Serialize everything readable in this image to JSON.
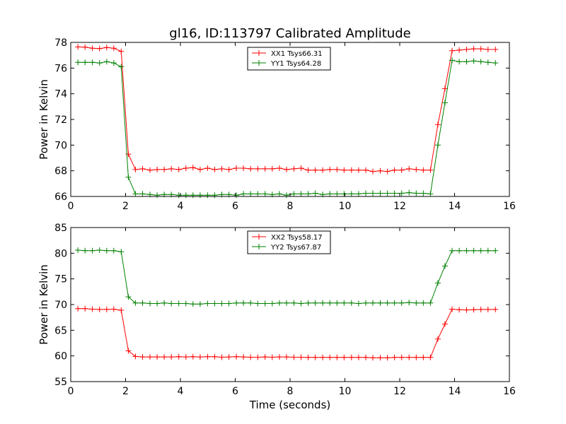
{
  "figure": {
    "title": "gl16, ID:113797 Calibrated Amplitude",
    "xlabel": "Time (seconds)"
  },
  "chart_data": [
    {
      "type": "line",
      "title": "gl16, ID:113797 Calibrated Amplitude",
      "xlabel": "",
      "ylabel": "Power in Kelvin",
      "xlim": [
        0,
        16
      ],
      "ylim": [
        66,
        78
      ],
      "xticks": [
        0,
        2,
        4,
        6,
        8,
        10,
        12,
        14,
        16
      ],
      "yticks": [
        66,
        68,
        70,
        72,
        74,
        76,
        78
      ],
      "grid": false,
      "legend_position": "top-center",
      "x": [
        0.26,
        0.52,
        0.79,
        1.05,
        1.31,
        1.57,
        1.84,
        2.1,
        2.36,
        2.62,
        2.89,
        3.15,
        3.41,
        3.67,
        3.94,
        4.2,
        4.46,
        4.72,
        4.99,
        5.25,
        5.51,
        5.77,
        6.04,
        6.3,
        6.56,
        6.82,
        7.09,
        7.35,
        7.61,
        7.87,
        8.14,
        8.4,
        8.66,
        8.92,
        9.19,
        9.45,
        9.71,
        9.97,
        10.24,
        10.5,
        10.76,
        11.02,
        11.29,
        11.55,
        11.81,
        12.07,
        12.34,
        12.6,
        12.86,
        13.12,
        13.39,
        13.65,
        13.91,
        14.17,
        14.44,
        14.7,
        14.96,
        15.22,
        15.49
      ],
      "series": [
        {
          "name": "XX1 Tsys66.31",
          "color": "#ff0000",
          "values": [
            77.65,
            77.63,
            77.55,
            77.52,
            77.6,
            77.55,
            77.3,
            69.3,
            68.1,
            68.15,
            68.05,
            68.1,
            68.1,
            68.15,
            68.1,
            68.2,
            68.25,
            68.1,
            68.2,
            68.1,
            68.15,
            68.1,
            68.2,
            68.2,
            68.15,
            68.15,
            68.15,
            68.15,
            68.2,
            68.1,
            68.15,
            68.2,
            68.05,
            68.05,
            68.05,
            68.1,
            68.1,
            68.05,
            68.05,
            68.05,
            68.05,
            67.95,
            68.0,
            67.95,
            68.05,
            68.05,
            68.15,
            68.1,
            68.05,
            68.05,
            71.6,
            74.4,
            77.35,
            77.4,
            77.45,
            77.5,
            77.5,
            77.45,
            77.45
          ]
        },
        {
          "name": "YY1 Tsys64.28",
          "color": "#008000",
          "values": [
            76.45,
            76.45,
            76.45,
            76.4,
            76.5,
            76.4,
            76.1,
            67.5,
            66.2,
            66.2,
            66.15,
            66.1,
            66.15,
            66.15,
            66.1,
            66.1,
            66.1,
            66.1,
            66.1,
            66.1,
            66.15,
            66.15,
            66.1,
            66.2,
            66.2,
            66.2,
            66.2,
            66.15,
            66.2,
            66.1,
            66.2,
            66.2,
            66.2,
            66.25,
            66.15,
            66.2,
            66.2,
            66.2,
            66.2,
            66.2,
            66.25,
            66.25,
            66.25,
            66.25,
            66.25,
            66.25,
            66.3,
            66.25,
            66.25,
            66.2,
            70.0,
            73.3,
            76.6,
            76.5,
            76.5,
            76.55,
            76.5,
            76.45,
            76.4
          ]
        }
      ]
    },
    {
      "type": "line",
      "title": "",
      "xlabel": "Time (seconds)",
      "ylabel": "Power in Kelvin",
      "xlim": [
        0,
        16
      ],
      "ylim": [
        55,
        85
      ],
      "xticks": [
        0,
        2,
        4,
        6,
        8,
        10,
        12,
        14,
        16
      ],
      "yticks": [
        55,
        60,
        65,
        70,
        75,
        80,
        85
      ],
      "grid": false,
      "legend_position": "top-center",
      "x": [
        0.26,
        0.52,
        0.79,
        1.05,
        1.31,
        1.57,
        1.84,
        2.1,
        2.36,
        2.62,
        2.89,
        3.15,
        3.41,
        3.67,
        3.94,
        4.2,
        4.46,
        4.72,
        4.99,
        5.25,
        5.51,
        5.77,
        6.04,
        6.3,
        6.56,
        6.82,
        7.09,
        7.35,
        7.61,
        7.87,
        8.14,
        8.4,
        8.66,
        8.92,
        9.19,
        9.45,
        9.71,
        9.97,
        10.24,
        10.5,
        10.76,
        11.02,
        11.29,
        11.55,
        11.81,
        12.07,
        12.34,
        12.6,
        12.86,
        13.12,
        13.39,
        13.65,
        13.91,
        14.17,
        14.44,
        14.7,
        14.96,
        15.22,
        15.49
      ],
      "series": [
        {
          "name": "XX2 Tsys58.17",
          "color": "#ff0000",
          "values": [
            69.2,
            69.2,
            69.1,
            69.05,
            69.05,
            69.1,
            68.9,
            61.0,
            59.9,
            59.8,
            59.8,
            59.8,
            59.8,
            59.8,
            59.85,
            59.8,
            59.85,
            59.8,
            59.85,
            59.85,
            59.75,
            59.8,
            59.85,
            59.8,
            59.75,
            59.75,
            59.8,
            59.75,
            59.8,
            59.8,
            59.75,
            59.75,
            59.7,
            59.7,
            59.7,
            59.7,
            59.7,
            59.7,
            59.7,
            59.7,
            59.7,
            59.65,
            59.65,
            59.65,
            59.7,
            59.7,
            59.7,
            59.7,
            59.7,
            59.7,
            63.3,
            66.2,
            69.1,
            69.0,
            68.95,
            69.0,
            69.05,
            69.05,
            69.05
          ]
        },
        {
          "name": "YY2 Tsys67.87",
          "color": "#008000",
          "values": [
            80.6,
            80.5,
            80.5,
            80.6,
            80.5,
            80.5,
            80.3,
            71.5,
            70.3,
            70.3,
            70.2,
            70.2,
            70.3,
            70.2,
            70.2,
            70.2,
            70.1,
            70.1,
            70.2,
            70.2,
            70.2,
            70.2,
            70.3,
            70.3,
            70.3,
            70.2,
            70.2,
            70.2,
            70.3,
            70.3,
            70.3,
            70.2,
            70.3,
            70.3,
            70.3,
            70.3,
            70.3,
            70.3,
            70.3,
            70.2,
            70.3,
            70.3,
            70.3,
            70.3,
            70.3,
            70.3,
            70.4,
            70.3,
            70.3,
            70.3,
            74.2,
            77.5,
            80.5,
            80.5,
            80.5,
            80.5,
            80.5,
            80.5,
            80.5
          ]
        }
      ]
    }
  ]
}
